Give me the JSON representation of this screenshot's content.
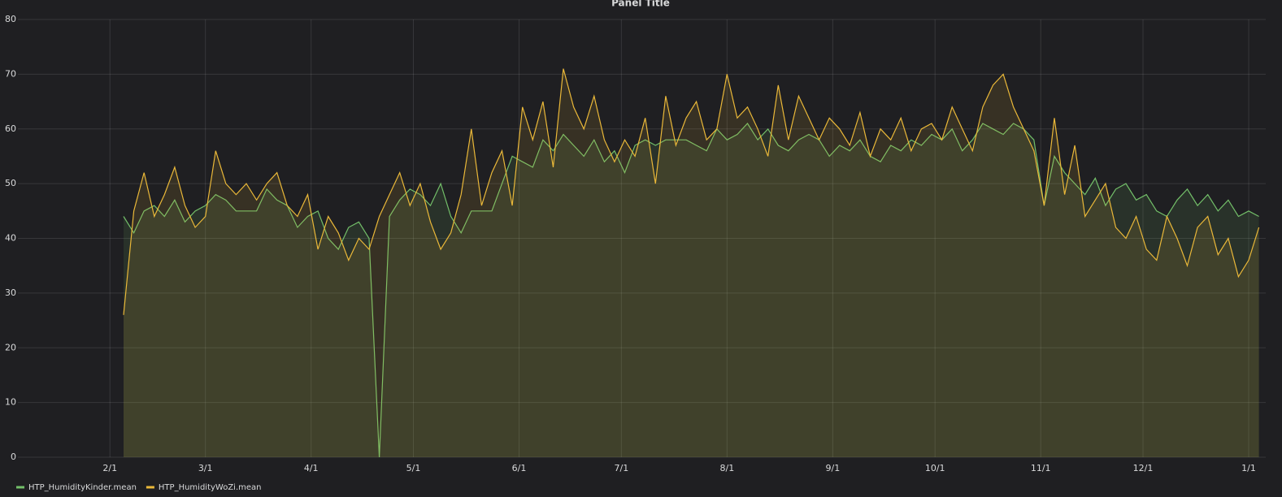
{
  "chart_data": {
    "type": "line",
    "title": "Panel Title",
    "x": [
      "2/5",
      "2/8",
      "2/11",
      "2/14",
      "2/17",
      "2/20",
      "2/23",
      "2/26",
      "3/1",
      "3/4",
      "3/7",
      "3/10",
      "3/13",
      "3/16",
      "3/19",
      "3/22",
      "3/25",
      "3/28",
      "3/31",
      "4/3",
      "4/6",
      "4/9",
      "4/12",
      "4/15",
      "4/18",
      "4/21",
      "4/24",
      "4/27",
      "4/30",
      "5/3",
      "5/6",
      "5/9",
      "5/12",
      "5/15",
      "5/18",
      "5/21",
      "5/24",
      "5/27",
      "5/30",
      "6/2",
      "6/5",
      "6/8",
      "6/11",
      "6/14",
      "6/17",
      "6/20",
      "6/23",
      "6/26",
      "6/29",
      "7/2",
      "7/5",
      "7/8",
      "7/11",
      "7/14",
      "7/17",
      "7/20",
      "7/23",
      "7/26",
      "7/29",
      "8/1",
      "8/4",
      "8/7",
      "8/10",
      "8/13",
      "8/16",
      "8/19",
      "8/22",
      "8/25",
      "8/28",
      "8/31",
      "9/3",
      "9/6",
      "9/9",
      "9/12",
      "9/15",
      "9/18",
      "9/21",
      "9/24",
      "9/27",
      "9/30",
      "10/3",
      "10/6",
      "10/9",
      "10/12",
      "10/15",
      "10/18",
      "10/21",
      "10/24",
      "10/27",
      "10/30",
      "11/2",
      "11/5",
      "11/8",
      "11/11",
      "11/14",
      "11/17",
      "11/20",
      "11/23",
      "11/26",
      "11/29",
      "12/2",
      "12/5",
      "12/8",
      "12/11",
      "12/14",
      "12/17",
      "12/20",
      "12/23",
      "12/26",
      "12/29",
      "1/1",
      "1/4"
    ],
    "series": [
      {
        "name": "HTP_HumidityKinder.mean",
        "color": "#73bf69",
        "values": [
          44,
          41,
          45,
          46,
          44,
          47,
          43,
          45,
          46,
          48,
          47,
          45,
          45,
          45,
          49,
          47,
          46,
          42,
          44,
          45,
          40,
          38,
          42,
          43,
          40,
          0,
          44,
          47,
          49,
          48,
          46,
          50,
          44,
          41,
          45,
          45,
          45,
          50,
          55,
          54,
          53,
          58,
          56,
          59,
          57,
          55,
          58,
          54,
          56,
          52,
          57,
          58,
          57,
          58,
          58,
          58,
          57,
          56,
          60,
          58,
          59,
          61,
          58,
          60,
          57,
          56,
          58,
          59,
          58,
          55,
          57,
          56,
          58,
          55,
          54,
          57,
          56,
          58,
          57,
          59,
          58,
          60,
          56,
          58,
          61,
          60,
          59,
          61,
          60,
          58,
          46,
          55,
          52,
          50,
          48,
          51,
          46,
          49,
          50,
          47,
          48,
          45,
          44,
          47,
          49,
          46,
          48,
          45,
          47,
          44,
          45,
          44
        ]
      },
      {
        "name": "HTP_HumidityWoZi.mean",
        "color": "#eab839",
        "values": [
          26,
          45,
          52,
          44,
          48,
          53,
          46,
          42,
          44,
          56,
          50,
          48,
          50,
          47,
          50,
          52,
          46,
          44,
          48,
          38,
          44,
          41,
          36,
          40,
          38,
          44,
          48,
          52,
          46,
          50,
          43,
          38,
          41,
          48,
          60,
          46,
          52,
          56,
          46,
          64,
          58,
          65,
          53,
          71,
          64,
          60,
          66,
          58,
          54,
          58,
          55,
          62,
          50,
          66,
          57,
          62,
          65,
          58,
          60,
          70,
          62,
          64,
          60,
          55,
          68,
          58,
          66,
          62,
          58,
          62,
          60,
          57,
          63,
          55,
          60,
          58,
          62,
          56,
          60,
          61,
          58,
          64,
          60,
          56,
          64,
          68,
          70,
          64,
          60,
          56,
          46,
          62,
          48,
          57,
          44,
          47,
          50,
          42,
          40,
          44,
          38,
          36,
          44,
          40,
          35,
          42,
          44,
          37,
          40,
          33,
          36,
          42
        ]
      }
    ],
    "xlim": [
      "1/5",
      "1/6"
    ],
    "xticks": [
      "2/1",
      "3/1",
      "4/1",
      "5/1",
      "6/1",
      "7/1",
      "8/1",
      "9/1",
      "10/1",
      "11/1",
      "12/1",
      "1/1"
    ],
    "ylim": [
      0,
      80
    ],
    "yticks": [
      0,
      10,
      20,
      30,
      40,
      50,
      60,
      70,
      80
    ],
    "grid": true,
    "fill": true,
    "legend": "bottom-left"
  }
}
